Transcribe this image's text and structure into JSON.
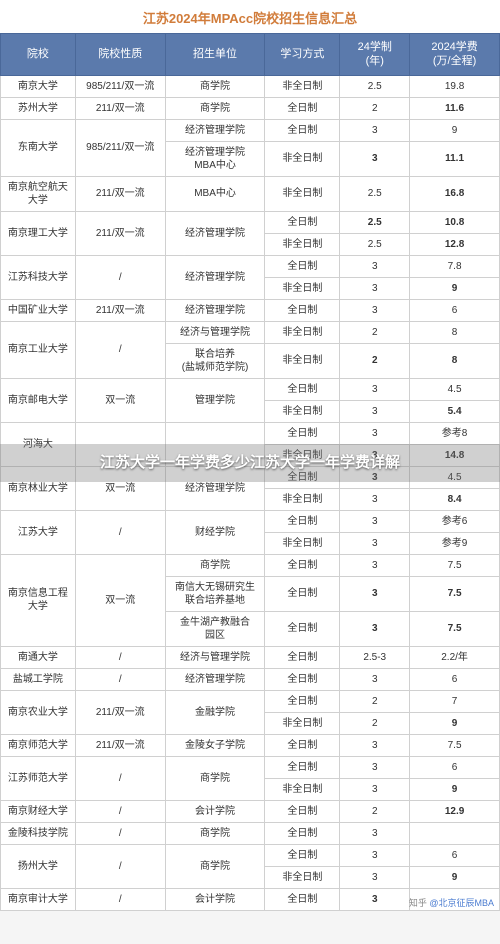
{
  "title": "江苏2024年MPAcc院校招生信息汇总",
  "overlay": "江苏大学一年学费多少江苏大学一年学费详解",
  "footer_prefix": "知乎 ",
  "footer_author": "@北京征辰MBA",
  "columns": [
    "院校",
    "院校性质",
    "招生单位",
    "学习方式",
    "24学制\n(年)",
    "2024学费\n(万/全程)"
  ],
  "styling": {
    "header_bg": "#5b7aac",
    "header_fg": "#ffffff",
    "title_color": "#d17c3a",
    "border_color": "#d0d0d0",
    "font_family": "Microsoft YaHei",
    "title_fontsize": 13,
    "header_fontsize": 11,
    "cell_fontsize": 10,
    "col_widths_pct": [
      15,
      18,
      20,
      15,
      14,
      18
    ]
  },
  "rows": [
    {
      "school": "南京大学",
      "type": "985/211/双一流",
      "unit": "商学院",
      "mode": "非全日制",
      "years": "2.5",
      "fee": "19.8",
      "fee_bold": false
    },
    {
      "school": "苏州大学",
      "type": "211/双一流",
      "unit": "商学院",
      "mode": "全日制",
      "years": "2",
      "fee": "11.6",
      "fee_bold": true
    },
    {
      "school": "东南大学",
      "school_rowspan": 2,
      "type": "985/211/双一流",
      "type_rowspan": 2,
      "unit": "经济管理学院",
      "mode": "全日制",
      "years": "3",
      "fee": "9"
    },
    {
      "unit": "经济管理学院\nMBA中心",
      "mode": "非全日制",
      "years": "3",
      "years_bold": true,
      "fee": "11.1",
      "fee_bold": true
    },
    {
      "school": "南京航空航天大学",
      "type": "211/双一流",
      "unit": "MBA中心",
      "mode": "非全日制",
      "years": "2.5",
      "fee": "16.8",
      "fee_bold": true
    },
    {
      "school": "南京理工大学",
      "school_rowspan": 2,
      "type": "211/双一流",
      "type_rowspan": 2,
      "unit": "经济管理学院",
      "unit_rowspan": 2,
      "mode": "全日制",
      "years": "2.5",
      "years_bold": true,
      "fee": "10.8",
      "fee_bold": true
    },
    {
      "mode": "非全日制",
      "years": "2.5",
      "fee": "12.8",
      "fee_bold": true
    },
    {
      "school": "江苏科技大学",
      "school_rowspan": 2,
      "type": "/",
      "type_rowspan": 2,
      "unit": "经济管理学院",
      "unit_rowspan": 2,
      "mode": "全日制",
      "years": "3",
      "fee": "7.8"
    },
    {
      "mode": "非全日制",
      "years": "3",
      "fee": "9",
      "fee_bold": true
    },
    {
      "school": "中国矿业大学",
      "type": "211/双一流",
      "unit": "经济管理学院",
      "mode": "全日制",
      "years": "3",
      "fee": "6"
    },
    {
      "school": "南京工业大学",
      "school_rowspan": 2,
      "type": "/",
      "type_rowspan": 2,
      "unit": "经济与管理学院",
      "mode": "非全日制",
      "years": "2",
      "fee": "8"
    },
    {
      "unit": "联合培养\n(盐城师范学院)",
      "mode": "非全日制",
      "years": "2",
      "years_bold": true,
      "fee": "8",
      "fee_bold": true
    },
    {
      "school": "南京邮电大学",
      "school_rowspan": 2,
      "type": "双一流",
      "type_rowspan": 2,
      "unit": "管理学院",
      "unit_rowspan": 2,
      "mode": "全日制",
      "years": "3",
      "fee": "4.5"
    },
    {
      "mode": "非全日制",
      "years": "3",
      "fee": "5.4",
      "fee_bold": true
    },
    {
      "school": "河海大",
      "school_rowspan": 2,
      "type": "",
      "type_rowspan": 2,
      "unit": "",
      "unit_rowspan": 2,
      "mode": "全日制",
      "years": "3",
      "fee": "参考8"
    },
    {
      "mode": "非全日制",
      "years": "3",
      "years_bold": true,
      "fee": "14.8",
      "fee_bold": true
    },
    {
      "school": "南京林业大学",
      "school_rowspan": 2,
      "type": "双一流",
      "type_rowspan": 2,
      "unit": "经济管理学院",
      "unit_rowspan": 2,
      "mode": "全日制",
      "years": "3",
      "years_bold": true,
      "fee": "4.5"
    },
    {
      "mode": "非全日制",
      "years": "3",
      "fee": "8.4",
      "fee_bold": true
    },
    {
      "school": "江苏大学",
      "school_rowspan": 2,
      "type": "/",
      "type_rowspan": 2,
      "unit": "财经学院",
      "unit_rowspan": 2,
      "mode": "全日制",
      "years": "3",
      "fee": "参考6"
    },
    {
      "mode": "非全日制",
      "years": "3",
      "fee": "参考9"
    },
    {
      "school": "南京信息工程大学",
      "school_rowspan": 3,
      "type": "双一流",
      "type_rowspan": 3,
      "unit": "商学院",
      "mode": "全日制",
      "years": "3",
      "fee": "7.5"
    },
    {
      "unit": "南信大无锡研究生\n联合培养基地",
      "mode": "全日制",
      "years": "3",
      "years_bold": true,
      "fee": "7.5",
      "fee_bold": true
    },
    {
      "unit": "金牛湖产教融合\n园区",
      "mode": "全日制",
      "years": "3",
      "years_bold": true,
      "fee": "7.5",
      "fee_bold": true
    },
    {
      "school": "南通大学",
      "type": "/",
      "unit": "经济与管理学院",
      "mode": "全日制",
      "years": "2.5-3",
      "fee": "2.2/年"
    },
    {
      "school": "盐城工学院",
      "type": "/",
      "unit": "经济管理学院",
      "mode": "全日制",
      "years": "3",
      "fee": "6"
    },
    {
      "school": "南京农业大学",
      "school_rowspan": 2,
      "type": "211/双一流",
      "type_rowspan": 2,
      "unit": "金融学院",
      "unit_rowspan": 2,
      "mode": "全日制",
      "years": "2",
      "fee": "7"
    },
    {
      "mode": "非全日制",
      "years": "2",
      "fee": "9",
      "fee_bold": true
    },
    {
      "school": "南京师范大学",
      "type": "211/双一流",
      "unit": "金陵女子学院",
      "mode": "全日制",
      "years": "3",
      "fee": "7.5"
    },
    {
      "school": "江苏师范大学",
      "school_rowspan": 2,
      "type": "/",
      "type_rowspan": 2,
      "unit": "商学院",
      "unit_rowspan": 2,
      "mode": "全日制",
      "years": "3",
      "fee": "6"
    },
    {
      "mode": "非全日制",
      "years": "3",
      "fee": "9",
      "fee_bold": true
    },
    {
      "school": "南京财经大学",
      "type": "/",
      "unit": "会计学院",
      "mode": "全日制",
      "years": "2",
      "fee": "12.9",
      "fee_bold": true
    },
    {
      "school": "金陵科技学院",
      "type": "/",
      "unit": "商学院",
      "mode": "全日制",
      "years": "3",
      "fee": ""
    },
    {
      "school": "扬州大学",
      "school_rowspan": 2,
      "type": "/",
      "type_rowspan": 2,
      "unit": "商学院",
      "unit_rowspan": 2,
      "mode": "全日制",
      "years": "3",
      "fee": "6"
    },
    {
      "mode": "非全日制",
      "years": "3",
      "fee": "9",
      "fee_bold": true
    },
    {
      "school": "南京审计大学",
      "type": "/",
      "unit": "会计学院",
      "mode": "全日制",
      "years": "3",
      "years_bold": true,
      "fee": ""
    }
  ]
}
